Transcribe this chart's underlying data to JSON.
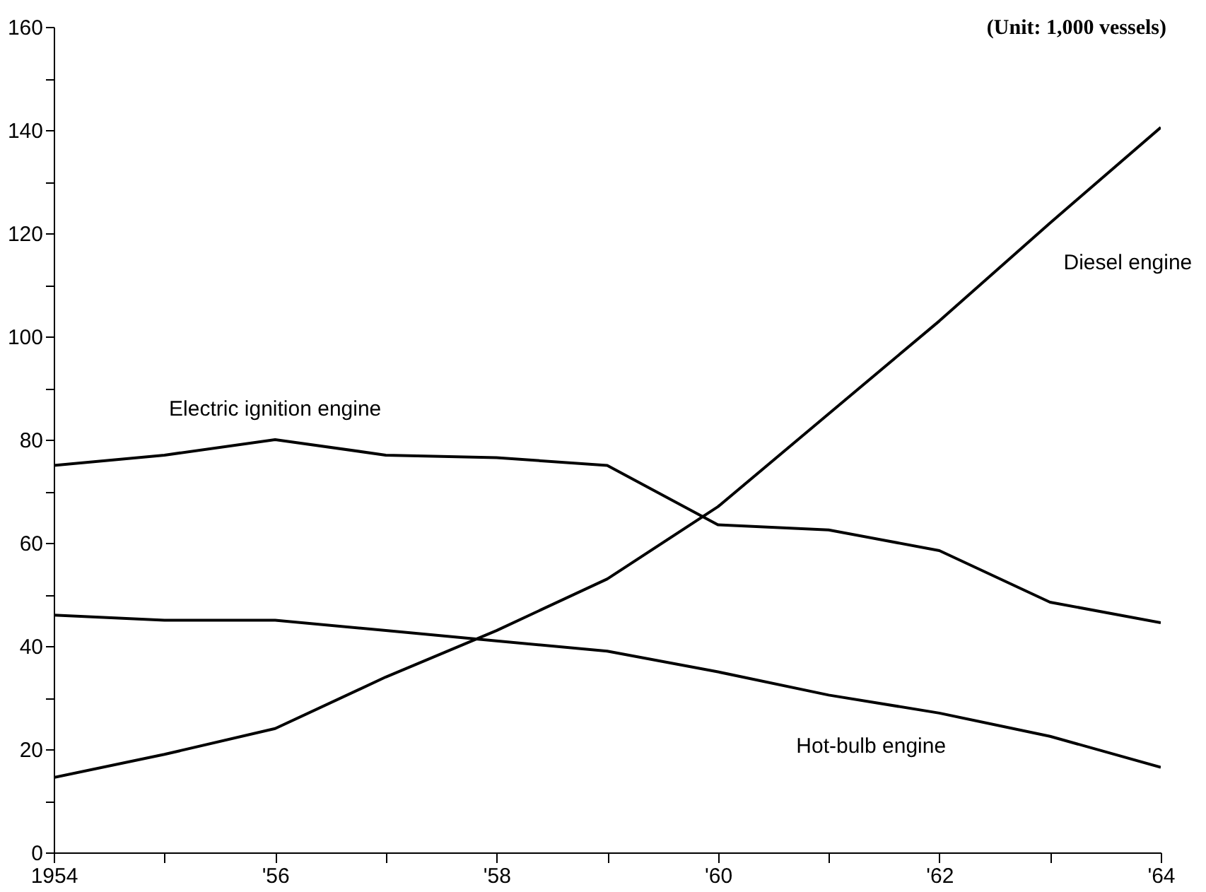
{
  "chart_data": {
    "type": "line",
    "x": [
      1954,
      1955,
      1956,
      1957,
      1958,
      1959,
      1960,
      1961,
      1962,
      1963,
      1964
    ],
    "xlim": [
      1954,
      1964
    ],
    "xticks": [
      1954,
      {
        "value": 1955,
        "label": null
      },
      {
        "value": 1956,
        "label": "'56"
      },
      {
        "value": 1957,
        "label": null
      },
      {
        "value": 1958,
        "label": "'58"
      },
      {
        "value": 1959,
        "label": null
      },
      {
        "value": 1960,
        "label": "'60"
      },
      {
        "value": 1961,
        "label": null
      },
      {
        "value": 1962,
        "label": "'62"
      },
      {
        "value": 1963,
        "label": null
      },
      {
        "value": 1964,
        "label": "'64"
      }
    ],
    "ylim": [
      0,
      160
    ],
    "yticks": [
      0,
      {
        "value": 10,
        "label": null
      },
      20,
      {
        "value": 30,
        "label": null
      },
      40,
      {
        "value": 50,
        "label": null
      },
      60,
      {
        "value": 70,
        "label": null
      },
      80,
      {
        "value": 90,
        "label": null
      },
      100,
      {
        "value": 110,
        "label": null
      },
      120,
      {
        "value": 130,
        "label": null
      },
      140,
      {
        "value": 150,
        "label": null
      },
      160
    ],
    "series": [
      {
        "name": "Electric ignition engine",
        "color": "#000000",
        "values": [
          75,
          77,
          80,
          77,
          76.5,
          75,
          63.5,
          62.5,
          58.5,
          48.5,
          44.5
        ]
      },
      {
        "name": "Hot-bulb engine",
        "color": "#000000",
        "values": [
          46,
          45,
          45,
          43,
          41,
          39,
          35,
          30.5,
          27,
          22.5,
          16.5
        ]
      },
      {
        "name": "Diesel engine",
        "color": "#000000",
        "values": [
          14.5,
          19,
          24,
          34,
          43,
          53,
          67,
          85,
          103,
          122,
          140.5
        ]
      }
    ],
    "annotations": [
      "(Unit:  1,000 vessels)"
    ],
    "grid": false,
    "marker": "none",
    "line_style": "solid"
  }
}
